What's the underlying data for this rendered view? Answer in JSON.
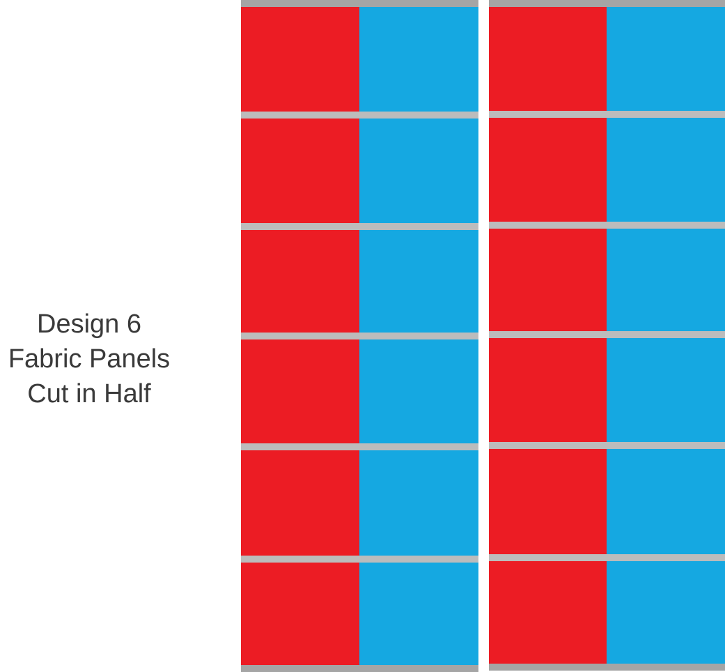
{
  "caption": {
    "line1": "Design 6",
    "line2": "Fabric Panels",
    "line3": "Cut in Half"
  },
  "colors": {
    "red": "#ec1c24",
    "blue": "#15a8e1",
    "rail": "#bcbcbc",
    "rail_edge": "#a5a5a5",
    "background": "#ffffff",
    "text": "#3a3a3a"
  },
  "panels": [
    {
      "name": "left-panel",
      "rows": 6,
      "columns": [
        "red",
        "blue"
      ]
    },
    {
      "name": "right-panel",
      "rows": 6,
      "columns": [
        "red",
        "blue"
      ]
    }
  ]
}
